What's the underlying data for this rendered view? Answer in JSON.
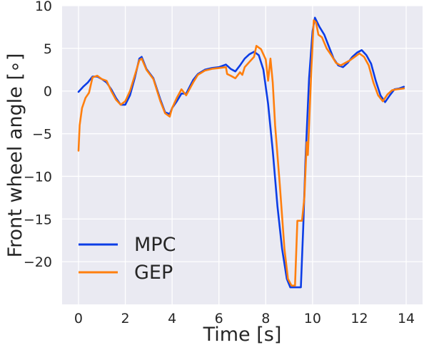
{
  "chart_data": {
    "type": "line",
    "title": "",
    "xlabel": "Time [s]",
    "ylabel": "Front wheel angle [∘]",
    "xlim": [
      -0.7,
      14.7
    ],
    "ylim": [
      -25,
      10
    ],
    "xticks": [
      0,
      2,
      4,
      6,
      8,
      10,
      12,
      14
    ],
    "yticks": [
      10,
      5,
      0,
      -5,
      -10,
      -15,
      -20
    ],
    "grid": true,
    "legend_position": "lower-left",
    "background": "#eaeaf2",
    "series": [
      {
        "name": "MPC",
        "color": "#0c3de6",
        "x": [
          0,
          0.2,
          0.4,
          0.6,
          0.8,
          1.0,
          1.2,
          1.4,
          1.6,
          1.8,
          2.0,
          2.2,
          2.4,
          2.6,
          2.7,
          2.9,
          3.2,
          3.5,
          3.7,
          3.9,
          4.0,
          4.2,
          4.4,
          4.6,
          4.9,
          5.1,
          5.4,
          5.7,
          6.0,
          6.3,
          6.5,
          6.7,
          6.9,
          7.1,
          7.3,
          7.5,
          7.7,
          7.9,
          8.1,
          8.3,
          8.5,
          8.7,
          8.9,
          9.05,
          9.2,
          9.5,
          9.6,
          9.7,
          9.85,
          10.0,
          10.1,
          10.3,
          10.5,
          10.7,
          10.9,
          11.1,
          11.3,
          11.5,
          11.7,
          11.9,
          12.1,
          12.3,
          12.5,
          12.7,
          12.9,
          13.1,
          13.3,
          13.5,
          13.7,
          13.9
        ],
        "y": [
          -0.1,
          0.5,
          1.0,
          1.7,
          1.7,
          1.4,
          1.0,
          0.2,
          -0.8,
          -1.6,
          -1.6,
          -0.5,
          1.5,
          3.8,
          4.0,
          2.6,
          1.5,
          -1.0,
          -2.5,
          -2.7,
          -2.0,
          -1.2,
          -0.3,
          -0.3,
          1.3,
          2.0,
          2.5,
          2.7,
          2.8,
          3.1,
          2.6,
          2.3,
          3.0,
          3.8,
          4.3,
          4.6,
          4.2,
          2.5,
          -1.5,
          -7.0,
          -13.5,
          -18.5,
          -22.0,
          -23.0,
          -23.0,
          -23.0,
          -16.0,
          -8.0,
          1.5,
          7.0,
          8.6,
          7.5,
          6.6,
          5.2,
          3.8,
          3.0,
          2.8,
          3.3,
          4.0,
          4.5,
          4.8,
          4.2,
          3.2,
          1.2,
          -0.5,
          -1.3,
          -0.5,
          0.2,
          0.3,
          0.5
        ]
      },
      {
        "name": "GEP",
        "color": "#ff7f0e",
        "x": [
          0,
          0.05,
          0.15,
          0.3,
          0.45,
          0.6,
          0.8,
          1.0,
          1.2,
          1.4,
          1.6,
          1.8,
          2.0,
          2.2,
          2.4,
          2.6,
          2.7,
          2.9,
          3.2,
          3.5,
          3.7,
          3.9,
          4.0,
          4.2,
          4.4,
          4.6,
          4.9,
          5.1,
          5.4,
          5.7,
          6.0,
          6.3,
          6.35,
          6.5,
          6.7,
          6.9,
          7.0,
          7.1,
          7.3,
          7.5,
          7.6,
          7.8,
          8.0,
          8.1,
          8.2,
          8.3,
          8.4,
          8.6,
          8.8,
          8.95,
          9.1,
          9.25,
          9.35,
          9.45,
          9.55,
          9.65,
          9.75,
          9.8,
          9.95,
          10.05,
          10.15,
          10.25,
          10.4,
          10.6,
          10.8,
          11.0,
          11.2,
          11.4,
          11.6,
          11.8,
          12.0,
          12.2,
          12.4,
          12.6,
          12.8,
          13.0,
          13.2,
          13.4,
          13.6,
          13.9
        ],
        "y": [
          -7.0,
          -4.0,
          -2.0,
          -0.8,
          -0.2,
          1.6,
          1.8,
          1.4,
          1.2,
          0.0,
          -1.0,
          -1.6,
          -1.2,
          0.0,
          1.8,
          3.6,
          3.8,
          2.5,
          1.4,
          -1.2,
          -2.6,
          -3.0,
          -2.0,
          -0.8,
          0.2,
          -0.5,
          1.0,
          1.9,
          2.4,
          2.6,
          2.7,
          2.8,
          2.0,
          1.8,
          1.5,
          2.2,
          1.9,
          2.8,
          3.4,
          4.0,
          5.3,
          4.9,
          3.7,
          1.2,
          3.8,
          1.0,
          -4.0,
          -11.0,
          -18.5,
          -22.0,
          -22.8,
          -22.8,
          -15.2,
          -15.2,
          -15.2,
          -12.5,
          -6.0,
          -7.5,
          2.5,
          8.3,
          8.0,
          6.6,
          6.3,
          5.0,
          4.2,
          3.3,
          3.0,
          3.3,
          3.6,
          4.0,
          4.4,
          4.0,
          3.0,
          1.0,
          -0.5,
          -1.2,
          -0.4,
          0.1,
          0.2,
          0.3
        ]
      }
    ]
  }
}
